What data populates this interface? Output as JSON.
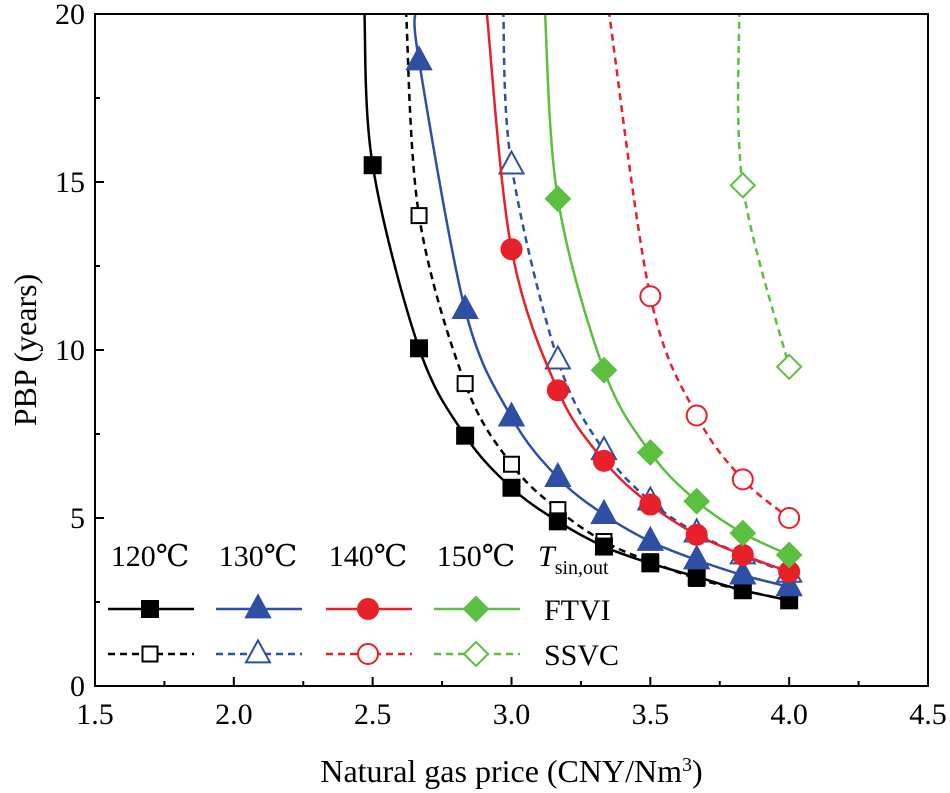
{
  "chart_data": {
    "type": "line",
    "xlabel": "Natural gas price (CNY/Nm",
    "xlabel_sup": "3",
    "xlabel_end": ")",
    "ylabel": "PBP (years)",
    "xlim": [
      1.5,
      4.5
    ],
    "ylim": [
      0,
      20
    ],
    "xticks": [
      "1.5",
      "2.0",
      "2.5",
      "3.0",
      "3.5",
      "4.0",
      "4.5"
    ],
    "yticks": [
      "0",
      "5",
      "10",
      "15",
      "20"
    ],
    "grid": false,
    "legend": {
      "placement": "bottom-left",
      "temperatures": [
        "120℃",
        "130℃",
        "140℃",
        "150℃"
      ],
      "tsymbol": "T",
      "tsub": "sin,out",
      "rows": [
        "FTVI",
        "SSVC"
      ]
    },
    "colors": {
      "120": "#000000",
      "130": "#2e4fa3",
      "140": "#e8202a",
      "150": "#5bbf3f"
    },
    "series": [
      {
        "name": "120℃ FTVI",
        "temp": "120",
        "mode": "FTVI",
        "marker": "square",
        "filled": true,
        "dashed": false,
        "x": [
          2.5,
          2.667,
          2.833,
          3.0,
          3.167,
          3.333,
          3.5,
          3.667,
          3.833,
          4.0
        ],
        "y": [
          15.5,
          10.05,
          7.45,
          5.9,
          4.9,
          4.15,
          3.65,
          3.25,
          2.85,
          2.55
        ],
        "curve_start": [
          2.47,
          20
        ]
      },
      {
        "name": "120℃ SSVC",
        "temp": "120",
        "mode": "SSVC",
        "marker": "square",
        "filled": false,
        "dashed": true,
        "x": [
          2.667,
          2.833,
          3.0,
          3.167,
          3.333,
          3.5,
          3.667,
          3.833,
          4.0
        ],
        "y": [
          14.0,
          9.0,
          6.6,
          5.25,
          4.3,
          3.7,
          3.2,
          2.85,
          2.55
        ],
        "curve_start": [
          2.62,
          20
        ]
      },
      {
        "name": "130℃ FTVI",
        "temp": "130",
        "mode": "FTVI",
        "marker": "triangle",
        "filled": true,
        "dashed": false,
        "x": [
          2.667,
          2.833,
          3.0,
          3.167,
          3.333,
          3.5,
          3.667,
          3.833,
          4.0
        ],
        "y": [
          18.6,
          11.2,
          8.0,
          6.2,
          5.1,
          4.3,
          3.75,
          3.3,
          2.95
        ],
        "curve_start": [
          2.655,
          20
        ]
      },
      {
        "name": "130℃ SSVC",
        "temp": "130",
        "mode": "SSVC",
        "marker": "triangle",
        "filled": false,
        "dashed": true,
        "x": [
          3.0,
          3.167,
          3.333,
          3.5,
          3.667,
          3.833,
          4.0
        ],
        "y": [
          15.5,
          9.7,
          7.0,
          5.5,
          4.55,
          3.9,
          3.35
        ],
        "curve_start": [
          2.97,
          20
        ]
      },
      {
        "name": "140℃ FTVI",
        "temp": "140",
        "mode": "FTVI",
        "marker": "circle",
        "filled": true,
        "dashed": false,
        "x": [
          3.0,
          3.167,
          3.333,
          3.5,
          3.667,
          3.833,
          4.0
        ],
        "y": [
          13.0,
          8.8,
          6.7,
          5.4,
          4.5,
          3.9,
          3.4
        ],
        "curve_start": [
          2.91,
          20
        ]
      },
      {
        "name": "140℃ SSVC",
        "temp": "140",
        "mode": "SSVC",
        "marker": "circle",
        "filled": false,
        "dashed": true,
        "x": [
          3.5,
          3.667,
          3.833,
          4.0
        ],
        "y": [
          11.6,
          8.05,
          6.15,
          5.0
        ],
        "curve_start": [
          3.35,
          20
        ]
      },
      {
        "name": "150℃ FTVI",
        "temp": "150",
        "mode": "FTVI",
        "marker": "diamond",
        "filled": true,
        "dashed": false,
        "x": [
          3.167,
          3.333,
          3.5,
          3.667,
          3.833,
          4.0
        ],
        "y": [
          14.5,
          9.4,
          6.95,
          5.5,
          4.55,
          3.9
        ],
        "curve_start": [
          3.12,
          20
        ]
      },
      {
        "name": "150℃ SSVC",
        "temp": "150",
        "mode": "SSVC",
        "marker": "diamond",
        "filled": false,
        "dashed": true,
        "x": [
          3.833,
          4.0
        ],
        "y": [
          14.9,
          9.5
        ],
        "curve_start": [
          3.82,
          20
        ]
      }
    ]
  }
}
